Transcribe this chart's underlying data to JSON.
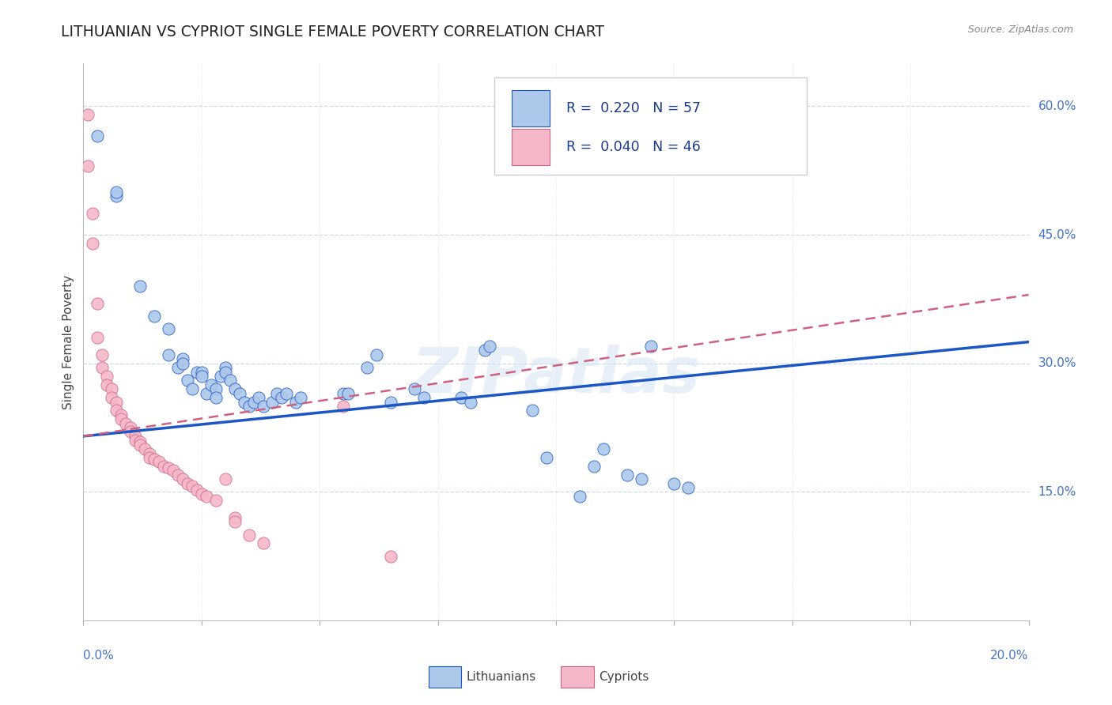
{
  "title": "LITHUANIAN VS CYPRIOT SINGLE FEMALE POVERTY CORRELATION CHART",
  "source": "Source: ZipAtlas.com",
  "ylabel": "Single Female Poverty",
  "right_ytick_vals": [
    0.15,
    0.3,
    0.45,
    0.6
  ],
  "right_ytick_labels": [
    "15.0%",
    "30.0%",
    "45.0%",
    "60.0%"
  ],
  "legend_entries": [
    {
      "label": "R =  0.220   N = 57",
      "color": "#adc6e8"
    },
    {
      "label": "R =  0.040   N = 46",
      "color": "#f4afc0"
    }
  ],
  "bottom_legend": [
    "Lithuanians",
    "Cypriots"
  ],
  "blue_scatter": [
    [
      0.003,
      0.565
    ],
    [
      0.007,
      0.495
    ],
    [
      0.007,
      0.5
    ],
    [
      0.012,
      0.39
    ],
    [
      0.015,
      0.355
    ],
    [
      0.018,
      0.34
    ],
    [
      0.018,
      0.31
    ],
    [
      0.02,
      0.295
    ],
    [
      0.021,
      0.305
    ],
    [
      0.021,
      0.3
    ],
    [
      0.022,
      0.28
    ],
    [
      0.023,
      0.27
    ],
    [
      0.024,
      0.29
    ],
    [
      0.025,
      0.29
    ],
    [
      0.025,
      0.285
    ],
    [
      0.026,
      0.265
    ],
    [
      0.027,
      0.275
    ],
    [
      0.028,
      0.27
    ],
    [
      0.028,
      0.26
    ],
    [
      0.029,
      0.285
    ],
    [
      0.03,
      0.295
    ],
    [
      0.03,
      0.29
    ],
    [
      0.031,
      0.28
    ],
    [
      0.032,
      0.27
    ],
    [
      0.033,
      0.265
    ],
    [
      0.034,
      0.255
    ],
    [
      0.035,
      0.25
    ],
    [
      0.036,
      0.255
    ],
    [
      0.037,
      0.26
    ],
    [
      0.038,
      0.25
    ],
    [
      0.04,
      0.255
    ],
    [
      0.041,
      0.265
    ],
    [
      0.042,
      0.26
    ],
    [
      0.043,
      0.265
    ],
    [
      0.045,
      0.255
    ],
    [
      0.046,
      0.26
    ],
    [
      0.055,
      0.265
    ],
    [
      0.056,
      0.265
    ],
    [
      0.06,
      0.295
    ],
    [
      0.062,
      0.31
    ],
    [
      0.065,
      0.255
    ],
    [
      0.07,
      0.27
    ],
    [
      0.072,
      0.26
    ],
    [
      0.08,
      0.26
    ],
    [
      0.082,
      0.255
    ],
    [
      0.085,
      0.315
    ],
    [
      0.086,
      0.32
    ],
    [
      0.095,
      0.245
    ],
    [
      0.098,
      0.19
    ],
    [
      0.105,
      0.145
    ],
    [
      0.108,
      0.18
    ],
    [
      0.11,
      0.2
    ],
    [
      0.115,
      0.17
    ],
    [
      0.118,
      0.165
    ],
    [
      0.12,
      0.32
    ],
    [
      0.125,
      0.16
    ],
    [
      0.128,
      0.155
    ]
  ],
  "pink_scatter": [
    [
      0.001,
      0.59
    ],
    [
      0.001,
      0.53
    ],
    [
      0.002,
      0.475
    ],
    [
      0.002,
      0.44
    ],
    [
      0.003,
      0.37
    ],
    [
      0.003,
      0.33
    ],
    [
      0.004,
      0.31
    ],
    [
      0.004,
      0.295
    ],
    [
      0.005,
      0.285
    ],
    [
      0.005,
      0.275
    ],
    [
      0.006,
      0.27
    ],
    [
      0.006,
      0.26
    ],
    [
      0.007,
      0.255
    ],
    [
      0.007,
      0.245
    ],
    [
      0.008,
      0.24
    ],
    [
      0.008,
      0.235
    ],
    [
      0.009,
      0.23
    ],
    [
      0.01,
      0.225
    ],
    [
      0.01,
      0.22
    ],
    [
      0.011,
      0.215
    ],
    [
      0.011,
      0.21
    ],
    [
      0.012,
      0.208
    ],
    [
      0.012,
      0.205
    ],
    [
      0.013,
      0.2
    ],
    [
      0.014,
      0.195
    ],
    [
      0.014,
      0.19
    ],
    [
      0.015,
      0.188
    ],
    [
      0.016,
      0.185
    ],
    [
      0.017,
      0.18
    ],
    [
      0.018,
      0.178
    ],
    [
      0.019,
      0.175
    ],
    [
      0.02,
      0.17
    ],
    [
      0.021,
      0.165
    ],
    [
      0.022,
      0.16
    ],
    [
      0.023,
      0.157
    ],
    [
      0.024,
      0.152
    ],
    [
      0.025,
      0.148
    ],
    [
      0.026,
      0.145
    ],
    [
      0.028,
      0.14
    ],
    [
      0.03,
      0.165
    ],
    [
      0.032,
      0.12
    ],
    [
      0.032,
      0.115
    ],
    [
      0.035,
      0.1
    ],
    [
      0.038,
      0.09
    ],
    [
      0.055,
      0.25
    ],
    [
      0.065,
      0.075
    ]
  ],
  "blue_line_x": [
    0.0,
    0.2
  ],
  "blue_line_y": [
    0.215,
    0.325
  ],
  "pink_line_x": [
    0.0,
    0.2
  ],
  "pink_line_y": [
    0.215,
    0.38
  ],
  "scatter_color_blue": "#adc8ea",
  "scatter_color_pink": "#f5b8c8",
  "line_color_blue": "#1a56c4",
  "line_color_pink": "#d06080",
  "background_color": "#ffffff",
  "grid_color": "#c8d4e8",
  "title_fontsize": 13.5,
  "axis_label_fontsize": 11,
  "tick_fontsize": 11,
  "watermark": "ZIPatlas",
  "xmin": 0.0,
  "xmax": 0.2,
  "ymin": 0.0,
  "ymax": 0.65
}
